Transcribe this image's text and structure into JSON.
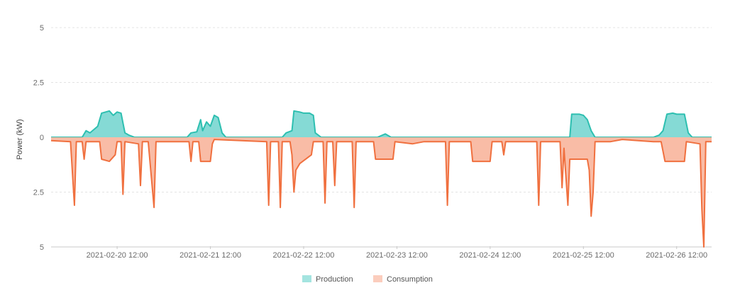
{
  "chart_data": {
    "type": "area",
    "ylabel": "Power  (kW)",
    "y_tick_labels": [
      "5",
      "2.5",
      "0",
      "2.5",
      "5"
    ],
    "ylim": [
      -5,
      5
    ],
    "x_tick_labels": [
      "2021-02-20 12:00",
      "2021-02-21 12:00",
      "2021-02-22 12:00",
      "2021-02-23 12:00",
      "2021-02-24 12:00",
      "2021-02-25 12:00",
      "2021-02-26 12:00"
    ],
    "x_ticks": [
      "2021-02-20 12:00",
      "2021-02-21 12:00",
      "2021-02-22 12:00",
      "2021-02-23 12:00",
      "2021-02-24 12:00",
      "2021-02-25 12:00",
      "2021-02-26 12:00"
    ],
    "xlim": [
      "2021-02-19 19:00",
      "2021-02-26 21:00"
    ],
    "grid": true,
    "legend_position": "bottom-center",
    "series": [
      {
        "name": "Production",
        "color": "#2dbfb0",
        "fill": "#7ed8d3",
        "points": [
          [
            "2021-02-19 19:00",
            0
          ],
          [
            "2021-02-20 03:00",
            0
          ],
          [
            "2021-02-20 04:00",
            0.3
          ],
          [
            "2021-02-20 05:00",
            0.2
          ],
          [
            "2021-02-20 07:00",
            0.5
          ],
          [
            "2021-02-20 08:00",
            1.1
          ],
          [
            "2021-02-20 10:00",
            1.2
          ],
          [
            "2021-02-20 11:00",
            1.0
          ],
          [
            "2021-02-20 12:00",
            1.15
          ],
          [
            "2021-02-20 13:00",
            1.1
          ],
          [
            "2021-02-20 14:00",
            0.2
          ],
          [
            "2021-02-20 15:00",
            0.1
          ],
          [
            "2021-02-20 16:30",
            0
          ],
          [
            "2021-02-21 06:00",
            0
          ],
          [
            "2021-02-21 07:00",
            0.2
          ],
          [
            "2021-02-21 08:30",
            0.25
          ],
          [
            "2021-02-21 09:30",
            0.8
          ],
          [
            "2021-02-21 10:00",
            0.3
          ],
          [
            "2021-02-21 11:00",
            0.7
          ],
          [
            "2021-02-21 12:00",
            0.5
          ],
          [
            "2021-02-21 13:00",
            1.0
          ],
          [
            "2021-02-21 14:00",
            0.9
          ],
          [
            "2021-02-21 15:00",
            0.2
          ],
          [
            "2021-02-21 16:00",
            0
          ],
          [
            "2021-02-22 06:30",
            0
          ],
          [
            "2021-02-22 07:30",
            0.2
          ],
          [
            "2021-02-22 09:00",
            0.3
          ],
          [
            "2021-02-22 09:30",
            1.2
          ],
          [
            "2021-02-22 11:00",
            1.15
          ],
          [
            "2021-02-22 12:00",
            1.1
          ],
          [
            "2021-02-22 13:30",
            1.1
          ],
          [
            "2021-02-22 14:30",
            1.0
          ],
          [
            "2021-02-22 15:00",
            0.2
          ],
          [
            "2021-02-22 16:30",
            0
          ],
          [
            "2021-02-23 07:00",
            0
          ],
          [
            "2021-02-23 09:00",
            0.15
          ],
          [
            "2021-02-23 10:30",
            0
          ],
          [
            "2021-02-25 08:30",
            0
          ],
          [
            "2021-02-25 09:00",
            1.05
          ],
          [
            "2021-02-25 11:00",
            1.05
          ],
          [
            "2021-02-25 12:00",
            1.0
          ],
          [
            "2021-02-25 13:00",
            0.8
          ],
          [
            "2021-02-25 14:00",
            0.3
          ],
          [
            "2021-02-25 15:00",
            0
          ],
          [
            "2021-02-26 06:00",
            0
          ],
          [
            "2021-02-26 07:30",
            0.1
          ],
          [
            "2021-02-26 08:30",
            0.3
          ],
          [
            "2021-02-26 09:30",
            1.05
          ],
          [
            "2021-02-26 11:00",
            1.1
          ],
          [
            "2021-02-26 12:00",
            1.05
          ],
          [
            "2021-02-26 14:00",
            1.05
          ],
          [
            "2021-02-26 15:00",
            0.2
          ],
          [
            "2021-02-26 16:00",
            0
          ],
          [
            "2021-02-26 21:00",
            0
          ]
        ]
      },
      {
        "name": "Consumption",
        "color": "#f0703f",
        "fill": "#f9b8a1",
        "points": [
          [
            "2021-02-19 19:00",
            -0.15
          ],
          [
            "2021-02-20 00:00",
            -0.2
          ],
          [
            "2021-02-20 01:00",
            -3.1
          ],
          [
            "2021-02-20 01:30",
            -0.2
          ],
          [
            "2021-02-20 03:00",
            -0.2
          ],
          [
            "2021-02-20 03:30",
            -1.0
          ],
          [
            "2021-02-20 04:00",
            -0.2
          ],
          [
            "2021-02-20 07:30",
            -0.2
          ],
          [
            "2021-02-20 08:00",
            -1.0
          ],
          [
            "2021-02-20 10:00",
            -1.1
          ],
          [
            "2021-02-20 11:30",
            -0.8
          ],
          [
            "2021-02-20 12:00",
            -0.2
          ],
          [
            "2021-02-20 13:00",
            -0.2
          ],
          [
            "2021-02-20 13:30",
            -2.6
          ],
          [
            "2021-02-20 14:00",
            -0.2
          ],
          [
            "2021-02-20 17:30",
            -0.3
          ],
          [
            "2021-02-20 18:00",
            -2.2
          ],
          [
            "2021-02-20 18:30",
            -0.2
          ],
          [
            "2021-02-20 20:00",
            -0.2
          ],
          [
            "2021-02-20 21:30",
            -3.2
          ],
          [
            "2021-02-20 22:00",
            -0.2
          ],
          [
            "2021-02-21 06:30",
            -0.2
          ],
          [
            "2021-02-21 07:00",
            -1.1
          ],
          [
            "2021-02-21 07:30",
            -0.2
          ],
          [
            "2021-02-21 09:00",
            -0.2
          ],
          [
            "2021-02-21 09:30",
            -1.1
          ],
          [
            "2021-02-21 12:00",
            -1.1
          ],
          [
            "2021-02-21 12:30",
            -0.3
          ],
          [
            "2021-02-21 13:00",
            -0.1
          ],
          [
            "2021-02-22 02:30",
            -0.2
          ],
          [
            "2021-02-22 03:00",
            -3.1
          ],
          [
            "2021-02-22 03:30",
            -0.2
          ],
          [
            "2021-02-22 05:30",
            -0.2
          ],
          [
            "2021-02-22 06:00",
            -3.2
          ],
          [
            "2021-02-22 06:30",
            -0.2
          ],
          [
            "2021-02-22 08:30",
            -0.2
          ],
          [
            "2021-02-22 09:00",
            -0.8
          ],
          [
            "2021-02-22 09:30",
            -2.5
          ],
          [
            "2021-02-22 10:00",
            -1.5
          ],
          [
            "2021-02-22 11:00",
            -1.2
          ],
          [
            "2021-02-22 14:00",
            -0.8
          ],
          [
            "2021-02-22 14:30",
            -0.2
          ],
          [
            "2021-02-22 17:00",
            -0.2
          ],
          [
            "2021-02-22 17:30",
            -3.0
          ],
          [
            "2021-02-22 18:00",
            -0.2
          ],
          [
            "2021-02-22 19:30",
            -0.2
          ],
          [
            "2021-02-22 20:00",
            -2.2
          ],
          [
            "2021-02-22 20:30",
            -0.2
          ],
          [
            "2021-02-23 00:30",
            -0.2
          ],
          [
            "2021-02-23 01:00",
            -3.2
          ],
          [
            "2021-02-23 01:30",
            -0.2
          ],
          [
            "2021-02-23 06:00",
            -0.2
          ],
          [
            "2021-02-23 06:30",
            -1.0
          ],
          [
            "2021-02-23 11:00",
            -1.0
          ],
          [
            "2021-02-23 11:30",
            -0.2
          ],
          [
            "2021-02-23 16:00",
            -0.3
          ],
          [
            "2021-02-23 19:00",
            -0.2
          ],
          [
            "2021-02-24 00:30",
            -0.2
          ],
          [
            "2021-02-24 01:00",
            -3.1
          ],
          [
            "2021-02-24 01:30",
            -0.2
          ],
          [
            "2021-02-24 07:00",
            -0.2
          ],
          [
            "2021-02-24 07:30",
            -1.1
          ],
          [
            "2021-02-24 12:00",
            -1.1
          ],
          [
            "2021-02-24 12:30",
            -0.2
          ],
          [
            "2021-02-24 15:00",
            -0.2
          ],
          [
            "2021-02-24 15:30",
            -0.8
          ],
          [
            "2021-02-24 16:00",
            -0.2
          ],
          [
            "2021-02-24 20:00",
            -0.2
          ],
          [
            "2021-02-25 00:00",
            -0.2
          ],
          [
            "2021-02-25 00:30",
            -3.1
          ],
          [
            "2021-02-25 01:00",
            -0.2
          ],
          [
            "2021-02-25 06:00",
            -0.2
          ],
          [
            "2021-02-25 06:30",
            -2.3
          ],
          [
            "2021-02-25 07:00",
            -0.5
          ],
          [
            "2021-02-25 08:00",
            -3.1
          ],
          [
            "2021-02-25 08:30",
            -1.0
          ],
          [
            "2021-02-25 13:00",
            -1.0
          ],
          [
            "2021-02-25 13:30",
            -1.5
          ],
          [
            "2021-02-25 14:00",
            -3.6
          ],
          [
            "2021-02-25 14:30",
            -2.5
          ],
          [
            "2021-02-25 15:00",
            -0.2
          ],
          [
            "2021-02-25 19:00",
            -0.2
          ],
          [
            "2021-02-25 22:00",
            -0.1
          ],
          [
            "2021-02-26 06:00",
            -0.2
          ],
          [
            "2021-02-26 08:00",
            -0.2
          ],
          [
            "2021-02-26 09:00",
            -1.1
          ],
          [
            "2021-02-26 14:00",
            -1.1
          ],
          [
            "2021-02-26 14:30",
            -0.2
          ],
          [
            "2021-02-26 18:00",
            -0.3
          ],
          [
            "2021-02-26 18:30",
            -3.3
          ],
          [
            "2021-02-26 19:00",
            -5.0
          ],
          [
            "2021-02-26 19:30",
            -0.2
          ],
          [
            "2021-02-26 21:00",
            -0.2
          ]
        ]
      }
    ]
  }
}
